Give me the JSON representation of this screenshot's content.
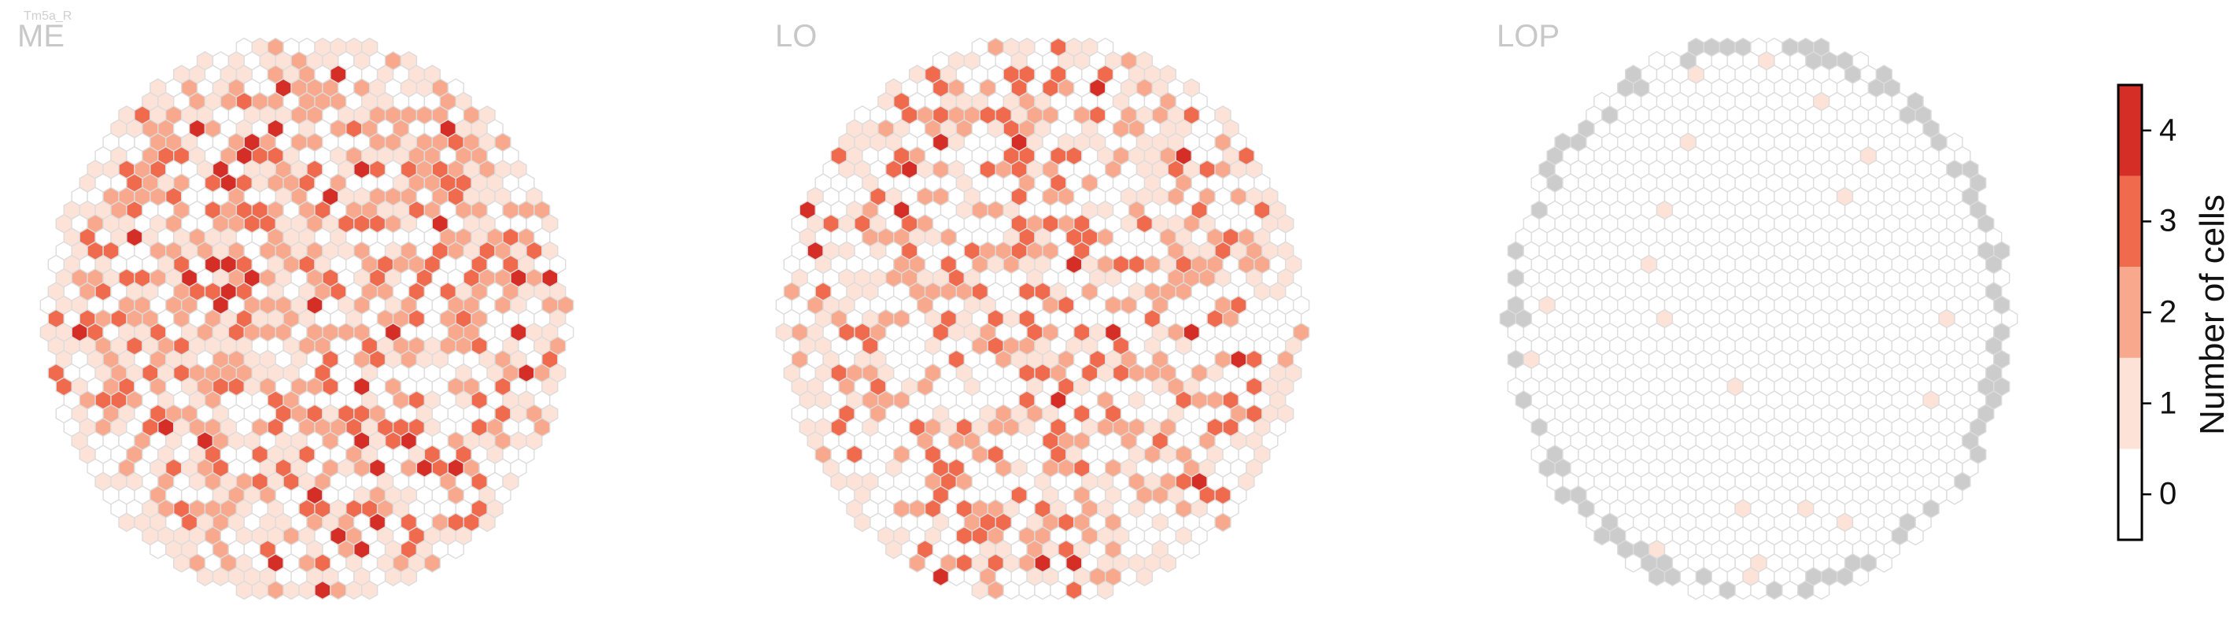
{
  "chart_data": {
    "type": "heatmap",
    "title": "Tm5a_R",
    "panels": [
      {
        "name": "ME",
        "counts": {
          "0": 0.35,
          "1": 0.2,
          "2": 0.3,
          "3": 0.12,
          "4": 0.03
        }
      },
      {
        "name": "LO",
        "counts": {
          "0": 0.45,
          "1": 0.2,
          "2": 0.2,
          "3": 0.12,
          "4": 0.03
        }
      },
      {
        "name": "LOP",
        "counts": {
          "0": 0.98,
          "1": 0.02
        }
      }
    ],
    "colorbar": {
      "label": "Number of cells",
      "ticks": [
        "0",
        "1",
        "2",
        "3",
        "4"
      ],
      "range": [
        -0.5,
        4.5
      ],
      "colors": [
        "#ffffff",
        "#fde2d8",
        "#f8a98d",
        "#f06a4e",
        "#d42e26"
      ]
    },
    "missing_color": "#cccccc",
    "empty_color": "#ffffff",
    "edge_color": "#dcdcdc"
  }
}
